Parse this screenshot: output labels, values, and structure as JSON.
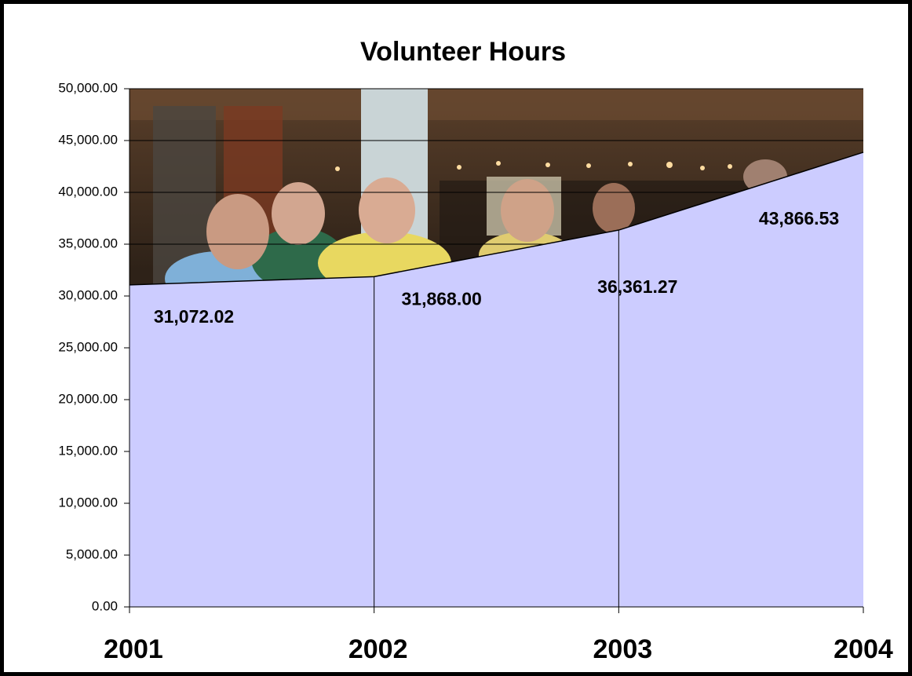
{
  "chart_data": {
    "type": "area",
    "title": "Volunteer Hours",
    "categories": [
      "2001",
      "2002",
      "2003",
      "2004"
    ],
    "values": [
      31072.02,
      31868.0,
      36361.27,
      43866.53
    ],
    "value_labels": [
      "31,072.02",
      "31,868.00",
      "36,361.27",
      "43,866.53"
    ],
    "color": "#ccccff",
    "ylim": [
      0,
      50000
    ],
    "yticks": [
      {
        "value": 0,
        "label": "0.00"
      },
      {
        "value": 5000,
        "label": "5,000.00"
      },
      {
        "value": 10000,
        "label": "10,000.00"
      },
      {
        "value": 15000,
        "label": "15,000.00"
      },
      {
        "value": 20000,
        "label": "20,000.00"
      },
      {
        "value": 25000,
        "label": "25,000.00"
      },
      {
        "value": 30000,
        "label": "30,000.00"
      },
      {
        "value": 35000,
        "label": "35,000.00"
      },
      {
        "value": 40000,
        "label": "40,000.00"
      },
      {
        "value": 45000,
        "label": "45,000.00"
      },
      {
        "value": 50000,
        "label": "50,000.00"
      }
    ],
    "grid": true
  }
}
